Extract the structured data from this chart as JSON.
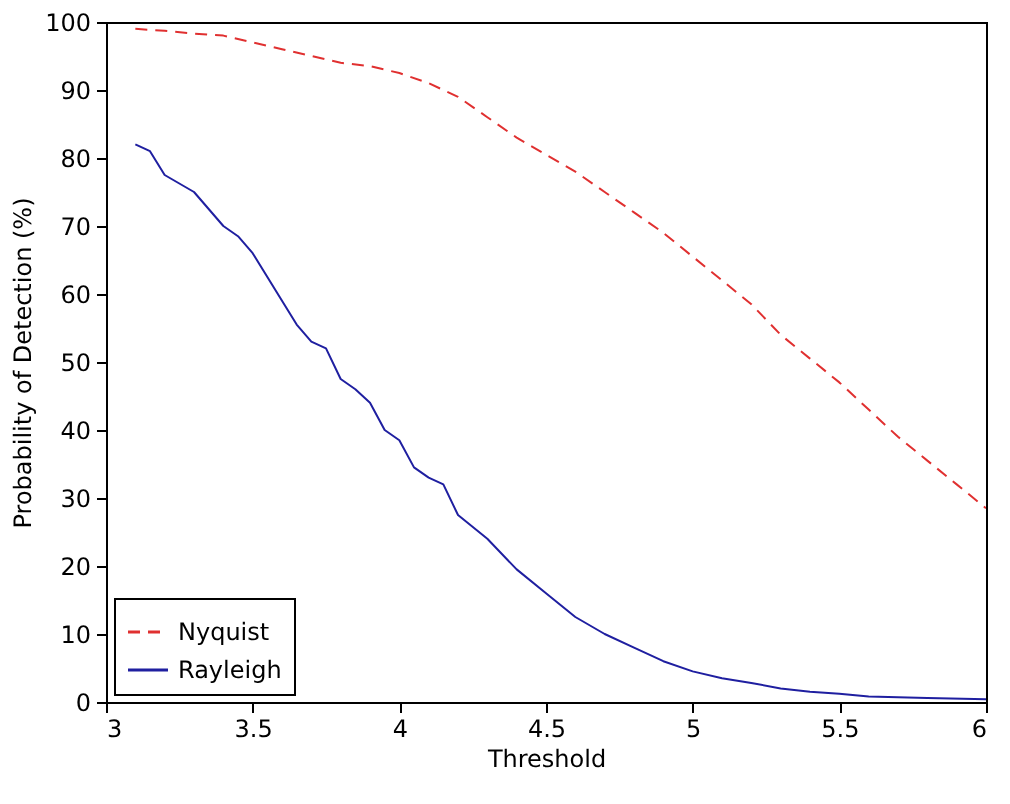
{
  "chart_data": {
    "type": "line",
    "xlabel": "Threshold",
    "ylabel": "Probability of Detection (%)",
    "xlim": [
      3,
      6
    ],
    "ylim": [
      0,
      100
    ],
    "xticks": [
      3,
      3.5,
      4,
      4.5,
      5,
      5.5,
      6
    ],
    "yticks": [
      0,
      10,
      20,
      30,
      40,
      50,
      60,
      70,
      80,
      90,
      100
    ],
    "grid": false,
    "legend": "bottom left",
    "marker": "none",
    "series": [
      {
        "name": "Nyquist",
        "color": "#e03030",
        "line_style": "dashed",
        "x": [
          3.1,
          3.2,
          3.3,
          3.4,
          3.5,
          3.6,
          3.7,
          3.8,
          3.9,
          4.0,
          4.1,
          4.2,
          4.3,
          4.4,
          4.5,
          4.6,
          4.7,
          4.8,
          4.9,
          5.0,
          5.1,
          5.2,
          5.3,
          5.4,
          5.5,
          5.6,
          5.7,
          5.8,
          5.9,
          6.0
        ],
        "values": [
          99,
          98.7,
          98.3,
          98,
          97,
          96,
          95,
          94,
          93.5,
          92.5,
          91,
          89,
          86,
          83,
          80.5,
          78,
          75,
          72,
          69,
          65.5,
          62,
          58.5,
          54,
          50.5,
          47,
          43,
          39,
          35.5,
          32,
          28.5
        ]
      },
      {
        "name": "Rayleigh",
        "color": "#1f1fa0",
        "line_style": "solid",
        "x": [
          3.1,
          3.15,
          3.2,
          3.3,
          3.4,
          3.45,
          3.5,
          3.6,
          3.65,
          3.7,
          3.75,
          3.8,
          3.85,
          3.9,
          3.95,
          4.0,
          4.05,
          4.1,
          4.15,
          4.2,
          4.3,
          4.4,
          4.5,
          4.6,
          4.7,
          4.8,
          4.9,
          5.0,
          5.1,
          5.2,
          5.3,
          5.4,
          5.5,
          5.6,
          5.8,
          6.0
        ],
        "values": [
          82,
          81,
          77.5,
          75,
          70,
          68.5,
          66,
          59,
          55.5,
          53,
          52,
          47.5,
          46,
          44,
          40,
          38.5,
          34.5,
          33,
          32,
          27.5,
          24,
          19.5,
          16,
          12.5,
          10,
          8,
          6,
          4.5,
          3.5,
          2.8,
          2,
          1.5,
          1.2,
          0.8,
          0.6,
          0.4
        ]
      }
    ]
  }
}
